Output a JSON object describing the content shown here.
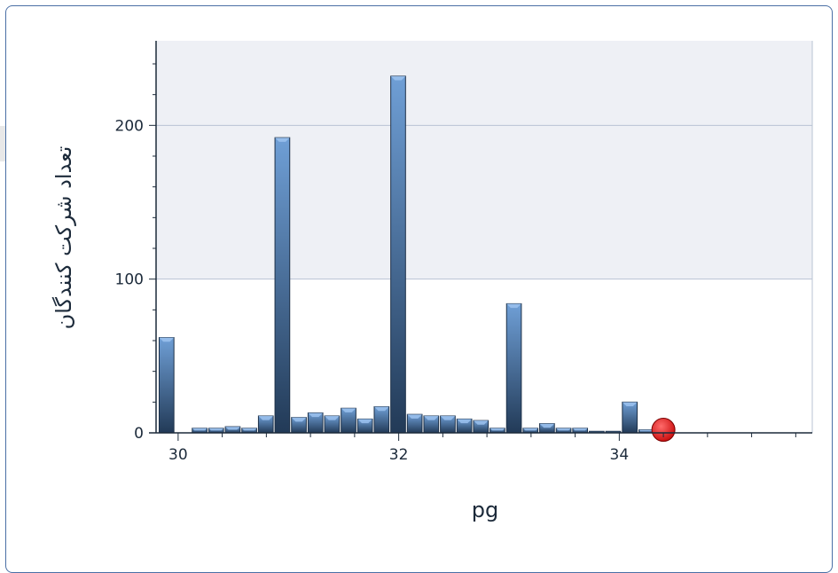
{
  "chart_data": {
    "type": "bar",
    "xlabel": "pg",
    "ylabel": "تعداد شرکت کنندگان",
    "x_ticks": [
      30,
      32,
      34
    ],
    "y_ticks": [
      0,
      100,
      200
    ],
    "xlim": [
      29.8,
      35.75
    ],
    "ylim": [
      0,
      255
    ],
    "bin_width": 0.15,
    "bins": [
      {
        "start": 29.82,
        "value": 62
      },
      {
        "start": 30.12,
        "value": 3
      },
      {
        "start": 30.27,
        "value": 3
      },
      {
        "start": 30.42,
        "value": 4
      },
      {
        "start": 30.57,
        "value": 3
      },
      {
        "start": 30.72,
        "value": 11
      },
      {
        "start": 30.87,
        "value": 192
      },
      {
        "start": 31.02,
        "value": 10
      },
      {
        "start": 31.17,
        "value": 13
      },
      {
        "start": 31.32,
        "value": 11
      },
      {
        "start": 31.47,
        "value": 16
      },
      {
        "start": 31.62,
        "value": 9
      },
      {
        "start": 31.77,
        "value": 17
      },
      {
        "start": 31.92,
        "value": 232
      },
      {
        "start": 32.07,
        "value": 12
      },
      {
        "start": 32.22,
        "value": 11
      },
      {
        "start": 32.37,
        "value": 11
      },
      {
        "start": 32.52,
        "value": 9
      },
      {
        "start": 32.67,
        "value": 8
      },
      {
        "start": 32.82,
        "value": 3
      },
      {
        "start": 32.97,
        "value": 84
      },
      {
        "start": 33.12,
        "value": 3
      },
      {
        "start": 33.27,
        "value": 6
      },
      {
        "start": 33.42,
        "value": 3
      },
      {
        "start": 33.57,
        "value": 3
      },
      {
        "start": 33.72,
        "value": 1
      },
      {
        "start": 33.87,
        "value": 1
      },
      {
        "start": 34.02,
        "value": 20
      },
      {
        "start": 34.17,
        "value": 2
      }
    ],
    "marker": {
      "x": 34.4,
      "value": 2,
      "color": "#cc1111"
    },
    "grid": true,
    "colors": {
      "bar_top": "#6f9fd6",
      "bar_bottom": "#223a57",
      "bar_edge": "#1c3048",
      "band": "#eef0f5",
      "grid": "#b9c3d3",
      "axis": "#1c2a3a"
    }
  }
}
